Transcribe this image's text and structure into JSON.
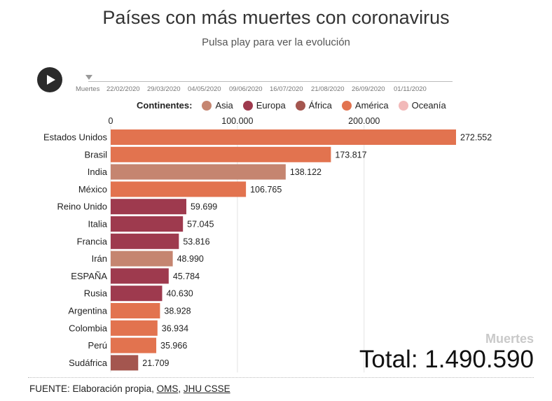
{
  "header": {
    "title": "Países con más muertes con coronavirus",
    "subtitle": "Pulsa play para ver la evolución"
  },
  "timeline": {
    "ticks": [
      "Muertes",
      "22/02/2020",
      "29/03/2020",
      "04/05/2020",
      "09/06/2020",
      "16/07/2020",
      "21/08/2020",
      "26/09/2020",
      "01/11/2020"
    ]
  },
  "legend": {
    "title": "Continentes:",
    "items": [
      {
        "label": "Asia",
        "color": "#c58570"
      },
      {
        "label": "Europa",
        "color": "#9e3a4e"
      },
      {
        "label": "África",
        "color": "#a4564f"
      },
      {
        "label": "América",
        "color": "#e2734f"
      },
      {
        "label": "Oceanía",
        "color": "#f2b9b9"
      }
    ]
  },
  "chart_data": {
    "type": "bar",
    "orientation": "horizontal",
    "xlim": [
      0,
      272552
    ],
    "x_ticks": [
      {
        "value": 0,
        "label": "0"
      },
      {
        "value": 100000,
        "label": "100.000"
      },
      {
        "value": 200000,
        "label": "200.000"
      }
    ],
    "grid": true,
    "categories": [
      "Estados Unidos",
      "Brasil",
      "India",
      "México",
      "Reino Unido",
      "Italia",
      "Francia",
      "Irán",
      "ESPAÑA",
      "Rusia",
      "Argentina",
      "Colombia",
      "Perú",
      "Sudáfrica"
    ],
    "values": [
      272552,
      173817,
      138122,
      106765,
      59699,
      57045,
      53816,
      48990,
      45784,
      40630,
      38928,
      36934,
      35966,
      21709
    ],
    "value_labels": [
      "272.552",
      "173.817",
      "138.122",
      "106.765",
      "59.699",
      "57.045",
      "53.816",
      "48.990",
      "45.784",
      "40.630",
      "38.928",
      "36.934",
      "35.966",
      "21.709"
    ],
    "continents": [
      "América",
      "América",
      "Asia",
      "América",
      "Europa",
      "Europa",
      "Europa",
      "Asia",
      "Europa",
      "Europa",
      "América",
      "America",
      "América",
      "África"
    ]
  },
  "totals": {
    "label": "Muertes",
    "value": "Total: 1.490.590"
  },
  "source": {
    "prefix": "FUENTE: Elaboración propia,",
    "link1": "OMS",
    "separator": ",",
    "link2": "JHU CSSE"
  }
}
